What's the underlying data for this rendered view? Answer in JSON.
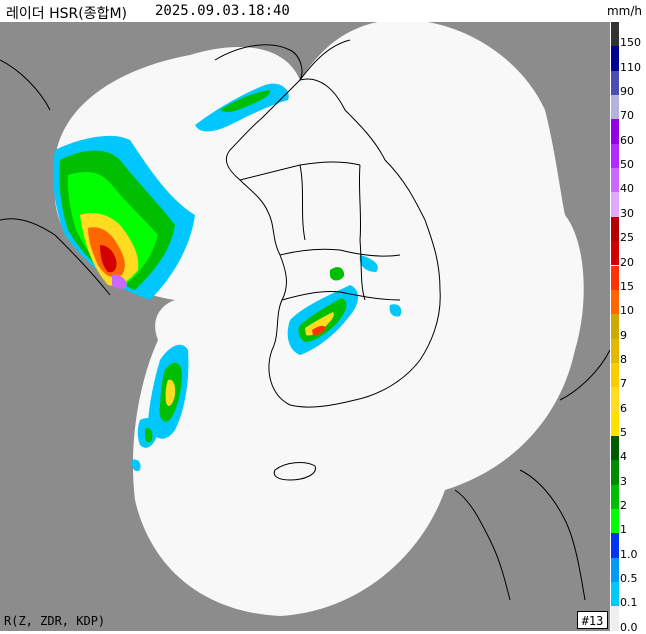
{
  "header": {
    "title": "레이더 HSR(종합M)",
    "datetime": "2025.09.03.18:40",
    "unit": "mm/h"
  },
  "footer": {
    "variables": "R(Z, ZDR, KDP)",
    "frame": "#13"
  },
  "colors": {
    "no_data": "#8c8c8c",
    "no_echo": "#f8f8f8",
    "boundary": "#000000"
  },
  "legend": [
    {
      "label": "150",
      "color": "#333333"
    },
    {
      "label": "110",
      "color": "#000390"
    },
    {
      "label": "90",
      "color": "#4c4eb1"
    },
    {
      "label": "70",
      "color": "#b3b4de"
    },
    {
      "label": "60",
      "color": "#9300e4"
    },
    {
      "label": "50",
      "color": "#b329ff"
    },
    {
      "label": "40",
      "color": "#c969ff"
    },
    {
      "label": "30",
      "color": "#e0a9ff"
    },
    {
      "label": "25",
      "color": "#b40000"
    },
    {
      "label": "20",
      "color": "#d20000"
    },
    {
      "label": "15",
      "color": "#ff3200"
    },
    {
      "label": "10",
      "color": "#ff6600"
    },
    {
      "label": "9",
      "color": "#ccaa00"
    },
    {
      "label": "8",
      "color": "#e0b900"
    },
    {
      "label": "7",
      "color": "#f9cd00"
    },
    {
      "label": "6",
      "color": "#ffdc1f"
    },
    {
      "label": "5",
      "color": "#ffe100"
    },
    {
      "label": "4",
      "color": "#005a00"
    },
    {
      "label": "3",
      "color": "#008c00"
    },
    {
      "label": "2",
      "color": "#00be00"
    },
    {
      "label": "1",
      "color": "#00ff00"
    },
    {
      "label": "1.0",
      "color": "#0033f5"
    },
    {
      "label": "0.5",
      "color": "#009bf5"
    },
    {
      "label": "0.1",
      "color": "#00c8ff"
    },
    {
      "label": "0.0",
      "color": "#eeeeee"
    }
  ]
}
